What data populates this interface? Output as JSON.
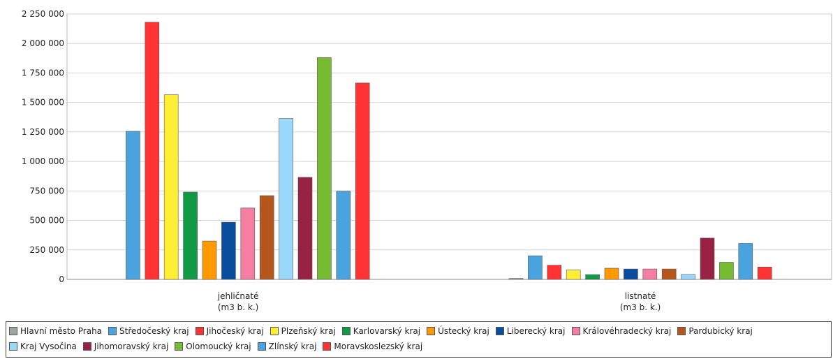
{
  "chart_data": {
    "type": "bar",
    "categories": [
      {
        "line1": "jehličnaté",
        "line2": "(m3 b. k.)"
      },
      {
        "line1": "listnaté",
        "line2": "(m3 b. k.)"
      }
    ],
    "y_ticks": [
      "0",
      "250 000",
      "500 000",
      "750 000",
      "1 000 000",
      "1 250 000",
      "1 500 000",
      "1 750 000",
      "2 000 000",
      "2 250 000"
    ],
    "ylim": [
      0,
      2250000
    ],
    "grid": true,
    "legend_position": "bottom",
    "series": [
      {
        "name": "Hlavní město Praha",
        "color": "#9fa8a0",
        "values": [
          0,
          8000
        ]
      },
      {
        "name": "Středočeský kraj",
        "color": "#4aa3df",
        "values": [
          1255000,
          200000
        ]
      },
      {
        "name": "Jihočeský kraj",
        "color": "#ff3333",
        "values": [
          2180000,
          120000
        ]
      },
      {
        "name": "Plzeňský kraj",
        "color": "#ffee33",
        "values": [
          1565000,
          80000
        ]
      },
      {
        "name": "Karlovarský kraj",
        "color": "#119944",
        "values": [
          740000,
          40000
        ]
      },
      {
        "name": "Ústecký kraj",
        "color": "#ff9900",
        "values": [
          325000,
          95000
        ]
      },
      {
        "name": "Liberecký kraj",
        "color": "#0a4d9e",
        "values": [
          485000,
          88000
        ]
      },
      {
        "name": "Královéhradecký kraj",
        "color": "#f47fa2",
        "values": [
          605000,
          88000
        ]
      },
      {
        "name": "Pardubický kraj",
        "color": "#b5561c",
        "values": [
          710000,
          88000
        ]
      },
      {
        "name": "Kraj Vysočina",
        "color": "#99d7fb",
        "values": [
          1365000,
          42000
        ]
      },
      {
        "name": "Jihomoravský kraj",
        "color": "#992244",
        "values": [
          865000,
          350000
        ]
      },
      {
        "name": "Olomoucký kraj",
        "color": "#77bb33",
        "values": [
          1880000,
          145000
        ]
      },
      {
        "name": "Zlínský kraj",
        "color": "#4aa3df",
        "values": [
          748000,
          305000
        ]
      },
      {
        "name": "Moravskoslezský kraj",
        "color": "#ff3333",
        "values": [
          1665000,
          105000
        ]
      }
    ]
  }
}
